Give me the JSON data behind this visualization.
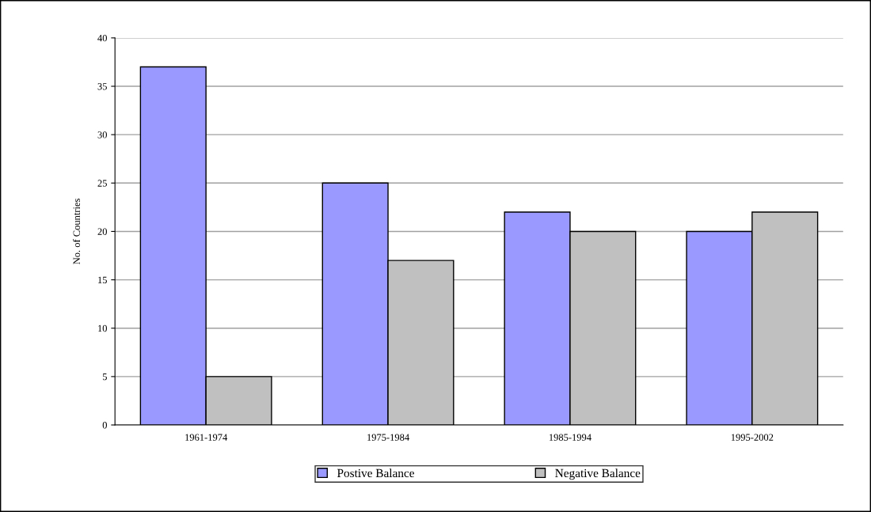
{
  "chart_data": {
    "type": "bar",
    "ylabel": "No. of Countries",
    "categories": [
      "1961-1974",
      "1975-1984",
      "1985-1994",
      "1995-2002"
    ],
    "series": [
      {
        "name": "Postive Balance",
        "color": "#9999ff",
        "values": [
          37,
          25,
          22,
          20
        ]
      },
      {
        "name": "Negative Balance",
        "color": "#c0c0c0",
        "values": [
          5,
          17,
          20,
          22
        ]
      }
    ],
    "ylim": [
      0,
      40
    ],
    "yticks": [
      0,
      5,
      10,
      15,
      20,
      25,
      30,
      35,
      40
    ],
    "grid": "y",
    "legend": "bottom"
  }
}
